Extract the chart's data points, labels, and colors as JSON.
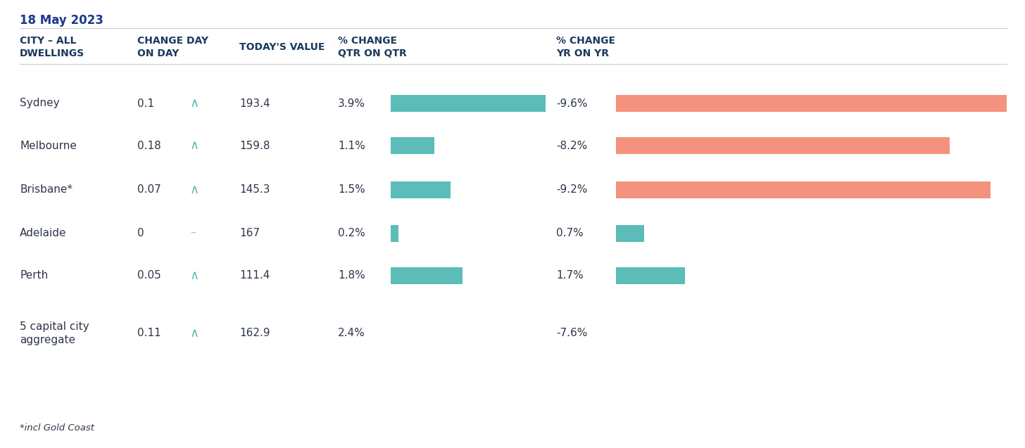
{
  "date": "18 May 2023",
  "footnote": "*incl Gold Coast",
  "col_headers": {
    "city": "CITY – ALL\nDWELLINGS",
    "change_day": "CHANGE DAY\nON DAY",
    "todays_value": "TODAY'S VALUE",
    "pct_qtr": "% CHANGE\nQTR ON QTR",
    "pct_yr": "% CHANGE\nYR ON YR"
  },
  "rows": [
    {
      "city": "Sydney",
      "change_day": "0.1",
      "arrow": "up",
      "todays_value": "193.4",
      "pct_qtr": 3.9,
      "pct_yr": -9.6,
      "show_qtr_bar": true,
      "show_yr_bar": true
    },
    {
      "city": "Melbourne",
      "change_day": "0.18",
      "arrow": "up",
      "todays_value": "159.8",
      "pct_qtr": 1.1,
      "pct_yr": -8.2,
      "show_qtr_bar": true,
      "show_yr_bar": true
    },
    {
      "city": "Brisbane*",
      "change_day": "0.07",
      "arrow": "up",
      "todays_value": "145.3",
      "pct_qtr": 1.5,
      "pct_yr": -9.2,
      "show_qtr_bar": true,
      "show_yr_bar": true
    },
    {
      "city": "Adelaide",
      "change_day": "0",
      "arrow": "flat",
      "todays_value": "167",
      "pct_qtr": 0.2,
      "pct_yr": 0.7,
      "show_qtr_bar": true,
      "show_yr_bar": true
    },
    {
      "city": "Perth",
      "change_day": "0.05",
      "arrow": "up",
      "todays_value": "111.4",
      "pct_qtr": 1.8,
      "pct_yr": 1.7,
      "show_qtr_bar": true,
      "show_yr_bar": true
    },
    {
      "city": "5 capital city\naggregate",
      "change_day": "0.11",
      "arrow": "up",
      "todays_value": "162.9",
      "pct_qtr": 2.4,
      "pct_yr": -7.6,
      "show_qtr_bar": false,
      "show_yr_bar": false
    }
  ],
  "bar_color_teal": "#5bbcb8",
  "bar_color_salmon": "#f4927e",
  "arrow_color_up": "#5bbcb8",
  "arrow_color_flat": "#b0b8c0",
  "header_color": "#1a3a5c",
  "date_color": "#1a3a8c",
  "text_color": "#2d3748",
  "background_color": "#ffffff",
  "separator_line_color": "#cccccc",
  "qtr_bar_max": 3.9,
  "yr_bar_max": 9.6,
  "fig_width": 14.56,
  "fig_height": 6.37,
  "fig_dpi": 100
}
